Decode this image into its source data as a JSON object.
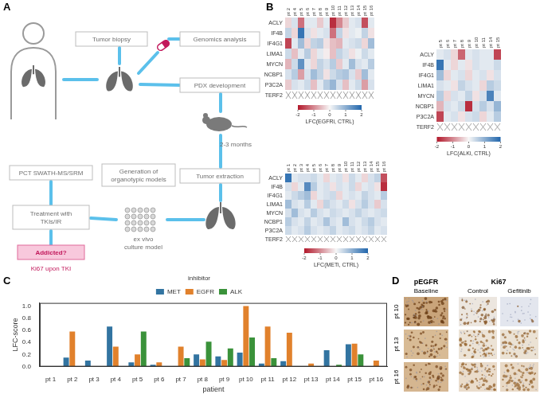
{
  "panel_labels": [
    "A",
    "B",
    "C",
    "D"
  ],
  "diagram": {
    "boxes": [
      [
        "Tumor biopsy"
      ],
      [
        "Genomics analysis"
      ],
      [
        "PDX development"
      ],
      [
        "Tumor extraction"
      ],
      [
        "Generation of",
        "organotypic models"
      ],
      [
        "Treatment with",
        "TKIs/IR"
      ],
      [
        "PCT SWATH-MS/SRM"
      ],
      [
        "Addicted?"
      ]
    ],
    "notes": [
      [
        "2-3 months"
      ],
      [
        "ex vivo",
        "culture model"
      ],
      [
        "Ki67 upon TKI"
      ]
    ]
  },
  "heatmaps": [
    {
      "rows": [
        "ACLY",
        "IF4B",
        "IF4G1",
        "LIMA1",
        "MYCN",
        "NCBP1",
        "P3C2A",
        "TERF2"
      ],
      "columns": [
        "pt 2",
        "pt 4",
        "pt 5",
        "pt 6",
        "pt 7",
        "pt 8",
        "pt 9",
        "pt 10",
        "pt 11",
        "pt 12",
        "pt 13",
        "pt 14",
        "pt 15",
        "pt 16"
      ],
      "cells": [
        [
          -0.3,
          0.3,
          -1.2,
          0.2,
          0.2,
          -0.4,
          0.2,
          -1.8,
          -1.0,
          -0.4,
          0.2,
          0.3,
          -1.5,
          0.2
        ],
        [
          0.5,
          -0.3,
          1.8,
          0.3,
          -0.2,
          0.2,
          0.3,
          -1.2,
          0.5,
          -0.2,
          0.2,
          0.1,
          0.5,
          -0.2
        ],
        [
          -1.6,
          0.2,
          0.8,
          -0.3,
          0.5,
          0.6,
          -0.2,
          -0.5,
          -0.6,
          0.2,
          0.3,
          0.4,
          -0.3,
          0.8
        ],
        [
          0.4,
          -0.5,
          0.2,
          0.6,
          -0.3,
          0.2,
          -0.1,
          -0.5,
          0.5,
          0.3,
          -0.2,
          0.1,
          0.4,
          0.2
        ],
        [
          -0.6,
          0.4,
          1.4,
          0.2,
          -0.3,
          0.5,
          0.3,
          0.6,
          -0.4,
          0.2,
          0.8,
          0.3,
          0.2,
          0.6
        ],
        [
          0.3,
          0.6,
          -0.8,
          0.3,
          0.8,
          0.5,
          -0.2,
          0.4,
          0.6,
          0.7,
          0.3,
          -0.4,
          0.8,
          0.2
        ],
        [
          -0.4,
          0.3,
          0.2,
          0.4,
          -0.5,
          0.2,
          0.6,
          0.9,
          0.3,
          -0.5,
          0.2,
          0.4,
          -0.8,
          0.3
        ],
        [
          null,
          null,
          null,
          null,
          null,
          null,
          null,
          null,
          null,
          null,
          null,
          null,
          null,
          null
        ]
      ],
      "colorbar": {
        "label": "LFC(EGFRi, CTRL)",
        "range": [
          -2,
          2
        ],
        "ticks": [
          -2,
          -1,
          0,
          1,
          2
        ],
        "colors": [
          "#b2182b",
          "#f7f7f7",
          "#2166ac"
        ]
      }
    },
    {
      "rows": [
        "ACLY",
        "IF4B",
        "IF4G1",
        "LIMA1",
        "MYCN",
        "NCBP1",
        "P3C2A",
        "TERF2"
      ],
      "columns": [
        "pt 5",
        "pt 6",
        "pt 7",
        "pt 8",
        "pt 9",
        "pt 10",
        "pt 11",
        "pt 14",
        "pt 15"
      ],
      "cells": [
        [
          0.2,
          0.3,
          -0.3,
          -1.3,
          0.2,
          0.3,
          0.2,
          0.2,
          -1.6
        ],
        [
          1.8,
          0.2,
          -0.3,
          0.2,
          -0.2,
          0.3,
          0.2,
          0.2,
          0.4
        ],
        [
          0.8,
          -0.3,
          0.2,
          0.3,
          -0.3,
          0.2,
          0.3,
          -0.2,
          0.3
        ],
        [
          0.3,
          0.2,
          -0.2,
          0.5,
          0.3,
          0.2,
          -0.3,
          0.6,
          0.4
        ],
        [
          0.6,
          -0.3,
          0.3,
          0.2,
          0.5,
          -0.2,
          0.3,
          1.6,
          0.2
        ],
        [
          -0.6,
          0.3,
          0.2,
          0.4,
          -1.8,
          0.3,
          0.6,
          0.3,
          0.9
        ],
        [
          -1.6,
          0.2,
          0.3,
          -0.2,
          0.3,
          0.4,
          -0.3,
          0.2,
          0.6
        ],
        [
          null,
          null,
          null,
          null,
          null,
          null,
          null,
          null,
          null
        ]
      ],
      "colorbar": {
        "label": "LFC(ALKi, CTRL)",
        "range": [
          -2,
          2
        ],
        "ticks": [
          -2,
          -1,
          0,
          1,
          2
        ],
        "colors": [
          "#b2182b",
          "#f7f7f7",
          "#2166ac"
        ]
      }
    },
    {
      "rows": [
        "ACLY",
        "IF4B",
        "IF4G1",
        "LIMA1",
        "MYCN",
        "NCBP1",
        "P3C2A",
        "TERF2"
      ],
      "columns": [
        "pt 1",
        "pt 2",
        "pt 3",
        "pt 4",
        "pt 5",
        "pt 6",
        "pt 7",
        "pt 8",
        "pt 9",
        "pt 10",
        "pt 11",
        "pt 12",
        "pt 13",
        "pt 14",
        "pt 15",
        "pt 16"
      ],
      "cells": [
        [
          1.8,
          0.2,
          0.3,
          0.3,
          0.4,
          0.2,
          -0.3,
          0.2,
          0.3,
          -0.2,
          0.4,
          0.2,
          -0.3,
          0.3,
          0.5,
          -1.5
        ],
        [
          0.3,
          -0.3,
          0.2,
          1.5,
          0.6,
          0.2,
          0.3,
          -0.2,
          0.3,
          0.2,
          0.4,
          -0.3,
          0.2,
          0.3,
          -0.2,
          -1.8
        ],
        [
          0.2,
          0.4,
          0.6,
          0.8,
          -0.3,
          0.2,
          0.3,
          0.4,
          -0.3,
          0.2,
          0.3,
          0.2,
          0.5,
          0.3,
          0.2,
          0.6
        ],
        [
          0.8,
          0.3,
          0.2,
          0.6,
          0.2,
          -0.3,
          0.5,
          0.3,
          0.2,
          0.4,
          -0.2,
          0.3,
          0.6,
          0.3,
          -0.4,
          0.3
        ],
        [
          0.3,
          0.8,
          0.3,
          0.2,
          0.6,
          0.3,
          0.2,
          0.4,
          0.3,
          0.2,
          0.3,
          0.5,
          0.3,
          0.2,
          0.3,
          0.4
        ],
        [
          0.6,
          0.3,
          0.2,
          0.5,
          0.2,
          0.3,
          0.7,
          0.3,
          0.2,
          0.8,
          0.3,
          0.2,
          0.4,
          0.6,
          0.3,
          0.2
        ],
        [
          0.4,
          0.2,
          0.3,
          0.6,
          0.3,
          0.2,
          0.3,
          0.5,
          0.2,
          0.3,
          0.4,
          0.2,
          0.3,
          0.5,
          0.2,
          0.3
        ],
        [
          null,
          null,
          null,
          null,
          null,
          null,
          null,
          null,
          null,
          null,
          null,
          null,
          null,
          null,
          null,
          null
        ]
      ],
      "colorbar": {
        "label": "LFC(METi, CTRL)",
        "range": [
          -2,
          2
        ],
        "ticks": [
          -2,
          -1,
          0,
          1,
          2
        ],
        "colors": [
          "#b2182b",
          "#f7f7f7",
          "#2166ac"
        ]
      }
    }
  ],
  "chart_data": {
    "type": "bar",
    "categories": [
      "pt 1",
      "pt 2",
      "pt 3",
      "pt 4",
      "pt 5",
      "pt 6",
      "pt 7",
      "pt 8",
      "pt 9",
      "pt 10",
      "pt 11",
      "pt 12",
      "pt 13",
      "pt 14",
      "pt 15",
      "pt 16"
    ],
    "series": [
      {
        "name": "MET",
        "color": "#3274a1",
        "values": [
          null,
          0.15,
          0.1,
          0.66,
          0.07,
          0.03,
          null,
          0.2,
          0.17,
          0.23,
          0.05,
          0.09,
          null,
          0.27,
          0.37,
          null
        ]
      },
      {
        "name": "EGFR",
        "color": "#e1812c",
        "values": [
          null,
          0.58,
          null,
          0.33,
          0.2,
          0.07,
          0.33,
          0.12,
          0.11,
          1.0,
          0.66,
          0.56,
          0.05,
          null,
          0.38,
          0.1
        ]
      },
      {
        "name": "ALK",
        "color": "#3a923a",
        "values": [
          null,
          null,
          null,
          null,
          0.58,
          null,
          0.14,
          0.41,
          0.3,
          0.48,
          0.14,
          null,
          null,
          0.03,
          0.2,
          null
        ]
      }
    ],
    "x_label": "patient",
    "y_label": "LFC-score",
    "legend_title": "inhibitor",
    "legend": "top",
    "ylim": [
      0,
      1.05
    ],
    "yticks": [
      {
        "value": 0,
        "label": "0.0"
      },
      0.2,
      0.4,
      0.6,
      0.8,
      {
        "value": 1,
        "label": "1.0"
      }
    ],
    "grid": false
  },
  "images": {
    "column_groups": [
      {
        "title": "pEGFR",
        "columns": [
          "Baseline"
        ]
      },
      {
        "title": "Ki67",
        "columns": [
          "Control",
          "Gefitinib"
        ]
      }
    ],
    "rows": [
      "pt 10",
      "pt 13",
      "pt 16"
    ]
  }
}
